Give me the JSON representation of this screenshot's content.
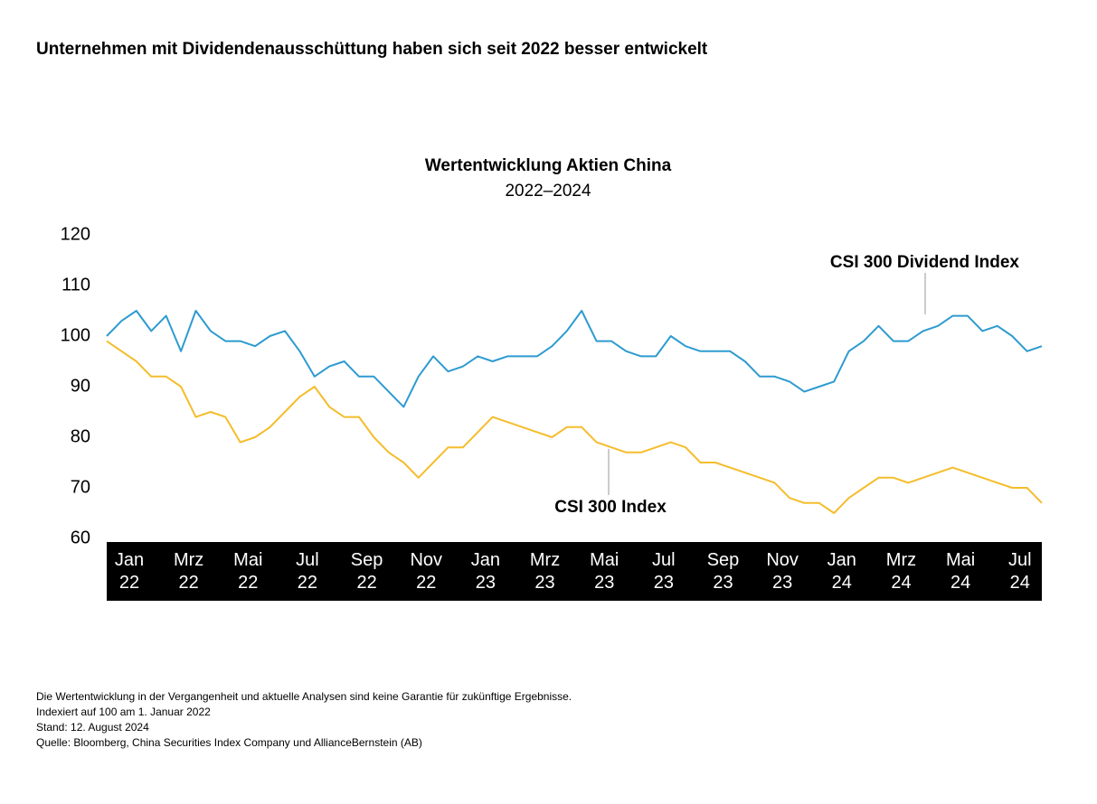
{
  "title": "Unternehmen mit Dividendenausschüttung haben sich seit 2022 besser entwickelt",
  "notes": [
    "Die Wertentwicklung in der Vergangenheit und aktuelle Analysen sind keine Garantie für zukünftige Ergebnisse.",
    "Indexiert auf 100 am 1. Januar 2022",
    "Stand: 12. August 2024",
    "Quelle: Bloomberg, China Securities Index Company und AllianceBernstein (AB)"
  ],
  "chart_data": {
    "type": "line",
    "title": "Wertentwicklung Aktien China",
    "subtitle": "2022–2024",
    "categories": [
      "Jan 22",
      null,
      null,
      null,
      "Mrz 22",
      null,
      null,
      null,
      "Mai 22",
      null,
      null,
      null,
      "Jul 22",
      null,
      null,
      null,
      "Sep 22",
      null,
      null,
      null,
      "Nov 22",
      null,
      null,
      null,
      "Jan 23",
      null,
      null,
      null,
      "Mrz 23",
      null,
      null,
      null,
      "Mai 23",
      null,
      null,
      null,
      "Jul 23",
      null,
      null,
      null,
      "Sep 23",
      null,
      null,
      null,
      "Nov 23",
      null,
      null,
      null,
      "Jan 24",
      null,
      null,
      null,
      "Mrz 24",
      null,
      null,
      null,
      "Mai 24",
      null,
      null,
      null,
      "Jul 24",
      null,
      null,
      null
    ],
    "series": [
      {
        "name": "CSI 300 Dividend Index",
        "color": "#2e9bd0",
        "values": [
          100,
          103,
          105,
          101,
          104,
          97,
          105,
          101,
          99,
          99,
          98,
          100,
          101,
          97,
          92,
          94,
          95,
          92,
          92,
          89,
          86,
          92,
          96,
          93,
          94,
          96,
          95,
          96,
          96,
          96,
          98,
          101,
          105,
          99,
          99,
          97,
          96,
          96,
          100,
          98,
          97,
          97,
          97,
          95,
          92,
          92,
          91,
          89,
          90,
          91,
          97,
          99,
          102,
          99,
          99,
          101,
          102,
          104,
          104,
          101,
          102,
          100,
          97,
          98
        ]
      },
      {
        "name": "CSI 300 Index",
        "color": "#f5bd2c",
        "values": [
          99,
          97,
          95,
          92,
          92,
          90,
          84,
          85,
          84,
          79,
          80,
          82,
          85,
          88,
          90,
          86,
          84,
          84,
          80,
          77,
          75,
          72,
          75,
          78,
          78,
          81,
          84,
          83,
          82,
          81,
          80,
          82,
          82,
          79,
          78,
          77,
          77,
          78,
          79,
          78,
          75,
          75,
          74,
          73,
          72,
          71,
          68,
          67,
          67,
          65,
          68,
          70,
          72,
          72,
          71,
          72,
          73,
          74,
          73,
          72,
          71,
          70,
          70,
          67
        ]
      }
    ],
    "ylim": [
      60,
      120
    ],
    "yticks": [
      60,
      70,
      80,
      90,
      100,
      110,
      120
    ],
    "grid": false
  }
}
